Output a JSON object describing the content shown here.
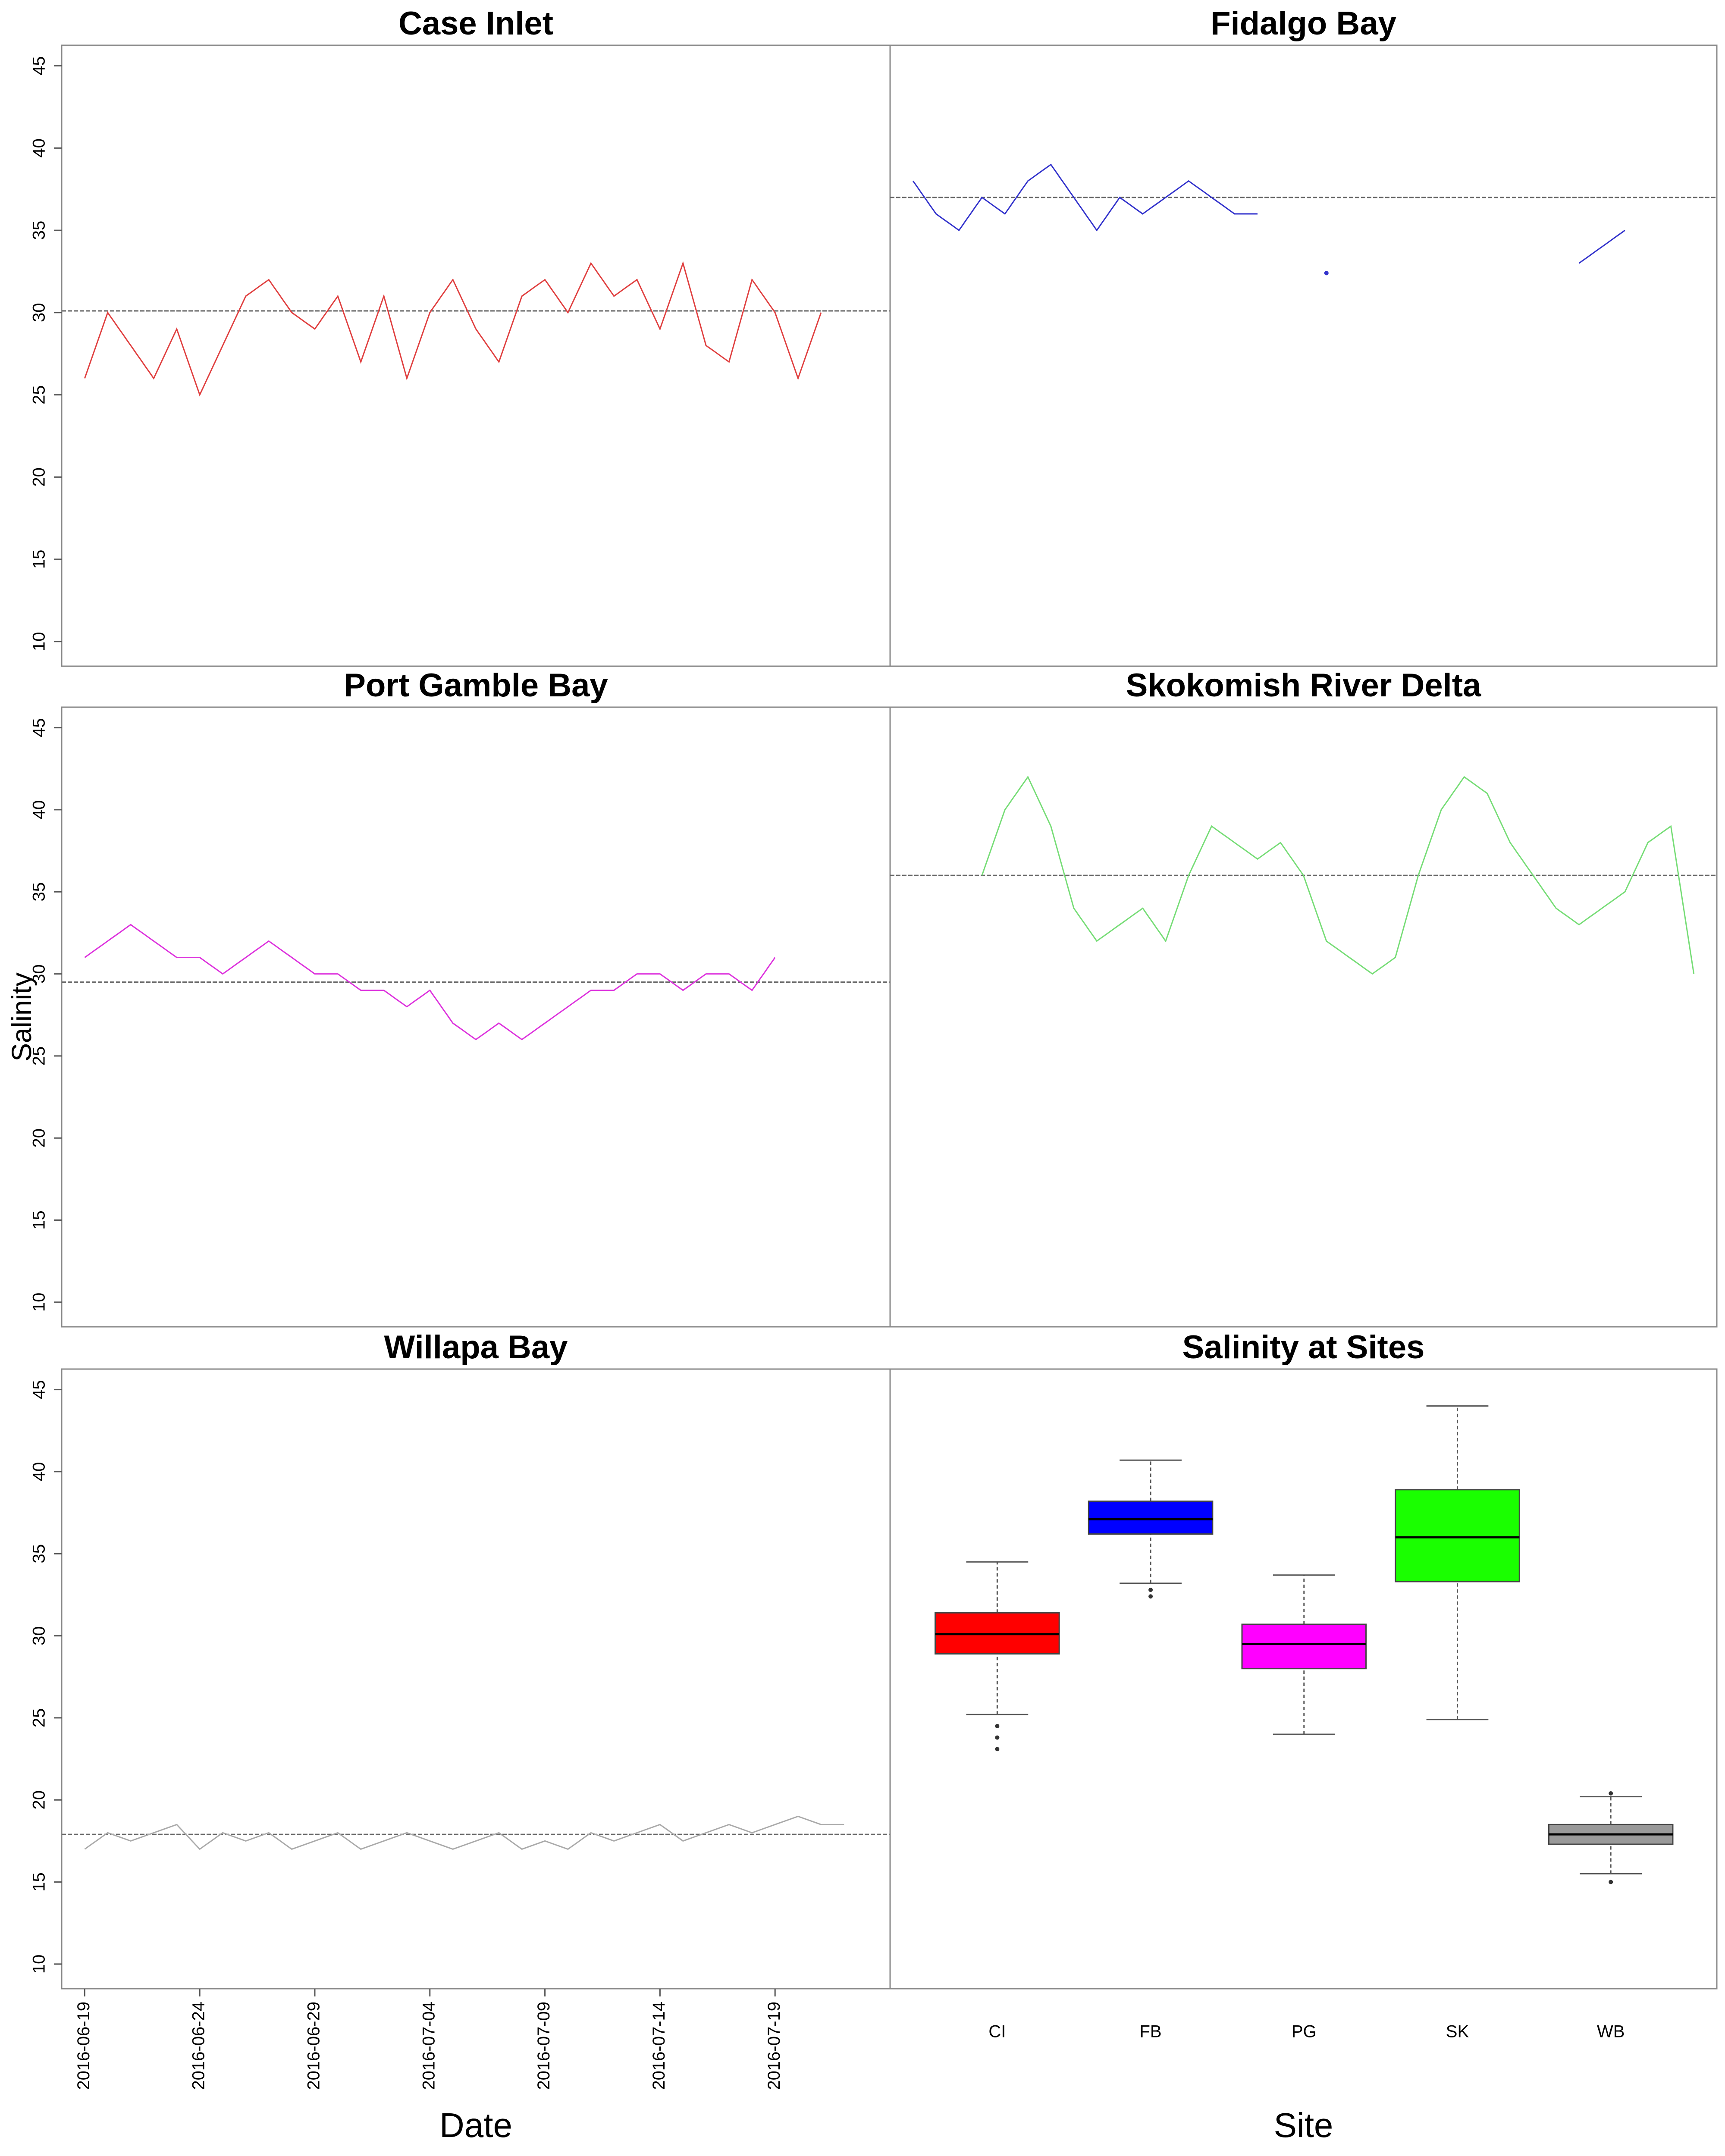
{
  "chart_data": [
    {
      "type": "line",
      "title": "Case Inlet",
      "color": "#e04040",
      "x": [
        "2016-06-19",
        "2016-06-20",
        "2016-06-21",
        "2016-06-22",
        "2016-06-23",
        "2016-06-24",
        "2016-06-25",
        "2016-06-26",
        "2016-06-27",
        "2016-06-28",
        "2016-06-29",
        "2016-06-30",
        "2016-07-01",
        "2016-07-02",
        "2016-07-03",
        "2016-07-04",
        "2016-07-05",
        "2016-07-06",
        "2016-07-07",
        "2016-07-08",
        "2016-07-09",
        "2016-07-10",
        "2016-07-11",
        "2016-07-12",
        "2016-07-13",
        "2016-07-14",
        "2016-07-15",
        "2016-07-16",
        "2016-07-17",
        "2016-07-18",
        "2016-07-19",
        "2016-07-20",
        "2016-07-21"
      ],
      "values": [
        26,
        30,
        28,
        26,
        29,
        25,
        28,
        31,
        32,
        30,
        29,
        31,
        27,
        31,
        26,
        30,
        32,
        29,
        27,
        31,
        32,
        30,
        33,
        31,
        32,
        29,
        33,
        28,
        27,
        32,
        30,
        26,
        30
      ],
      "median": 30.1,
      "xlim": [
        "2016-06-18",
        "2016-07-24"
      ],
      "ylim": [
        8.5,
        46.25
      ],
      "yticks": [
        10,
        15,
        20,
        25,
        30,
        35,
        40,
        45
      ]
    },
    {
      "type": "line",
      "title": "Fidalgo Bay",
      "color": "#3333cc",
      "x": [
        "2016-06-19",
        "2016-06-20",
        "2016-06-21",
        "2016-06-22",
        "2016-06-23",
        "2016-06-24",
        "2016-06-25",
        "2016-06-26",
        "2016-06-27",
        "2016-06-28",
        "2016-06-29",
        "2016-06-30",
        "2016-07-01",
        "2016-07-02",
        "2016-07-03",
        "2016-07-04",
        "2016-07-05",
        "2016-07-06",
        "2016-07-07",
        "2016-07-08",
        "2016-07-09",
        "2016-07-10",
        "2016-07-11",
        "2016-07-12",
        "2016-07-13",
        "2016-07-14",
        "2016-07-15",
        "2016-07-16",
        "2016-07-17",
        "2016-07-18",
        "2016-07-19",
        "2016-07-20"
      ],
      "values": [
        38,
        36,
        35,
        37,
        36,
        38,
        39,
        37,
        35,
        37,
        36,
        37,
        38,
        37,
        36,
        36,
        null,
        null,
        32.4,
        null,
        null,
        null,
        null,
        null,
        null,
        null,
        null,
        null,
        null,
        33,
        34,
        35
      ],
      "median": 37,
      "xlim": [
        "2016-06-18",
        "2016-07-24"
      ],
      "ylim": [
        8.5,
        46.25
      ]
    },
    {
      "type": "line",
      "title": "Port Gamble Bay",
      "color": "#dd33dd",
      "ylabel": "Salinity",
      "x": [
        "2016-06-19",
        "2016-06-20",
        "2016-06-21",
        "2016-06-22",
        "2016-06-23",
        "2016-06-24",
        "2016-06-25",
        "2016-06-26",
        "2016-06-27",
        "2016-06-28",
        "2016-06-29",
        "2016-06-30",
        "2016-07-01",
        "2016-07-02",
        "2016-07-03",
        "2016-07-04",
        "2016-07-05",
        "2016-07-06",
        "2016-07-07",
        "2016-07-08",
        "2016-07-09",
        "2016-07-10",
        "2016-07-11",
        "2016-07-12",
        "2016-07-13",
        "2016-07-14",
        "2016-07-15",
        "2016-07-16",
        "2016-07-17",
        "2016-07-18",
        "2016-07-19"
      ],
      "values": [
        31,
        32,
        33,
        32,
        31,
        31,
        30,
        31,
        32,
        31,
        30,
        30,
        29,
        29,
        28,
        29,
        27,
        26,
        27,
        26,
        27,
        28,
        29,
        29,
        30,
        30,
        29,
        30,
        30,
        29,
        31
      ],
      "median": 29.5,
      "xlim": [
        "2016-06-18",
        "2016-07-24"
      ],
      "ylim": [
        8.5,
        46.25
      ],
      "yticks": [
        10,
        15,
        20,
        25,
        30,
        35,
        40,
        45
      ]
    },
    {
      "type": "line",
      "title": "Skokomish River Delta",
      "color": "#77dd77",
      "x": [
        "2016-06-22",
        "2016-06-23",
        "2016-06-24",
        "2016-06-25",
        "2016-06-26",
        "2016-06-27",
        "2016-06-28",
        "2016-06-29",
        "2016-06-30",
        "2016-07-01",
        "2016-07-02",
        "2016-07-03",
        "2016-07-04",
        "2016-07-05",
        "2016-07-06",
        "2016-07-07",
        "2016-07-08",
        "2016-07-09",
        "2016-07-10",
        "2016-07-11",
        "2016-07-12",
        "2016-07-13",
        "2016-07-14",
        "2016-07-15",
        "2016-07-16",
        "2016-07-17",
        "2016-07-18",
        "2016-07-19",
        "2016-07-20",
        "2016-07-21",
        "2016-07-22",
        "2016-07-23"
      ],
      "values": [
        36,
        40,
        42,
        39,
        34,
        32,
        33,
        34,
        32,
        36,
        39,
        38,
        37,
        38,
        36,
        32,
        31,
        30,
        31,
        36,
        40,
        42,
        41,
        38,
        36,
        34,
        33,
        34,
        35,
        38,
        39,
        30
      ],
      "median": 36,
      "xlim": [
        "2016-06-18",
        "2016-07-24"
      ],
      "ylim": [
        8.5,
        46.25
      ]
    },
    {
      "type": "line",
      "title": "Willapa Bay",
      "color": "#aaaaaa",
      "xlabel": "Date",
      "x": [
        "2016-06-19",
        "2016-06-20",
        "2016-06-21",
        "2016-06-22",
        "2016-06-23",
        "2016-06-24",
        "2016-06-25",
        "2016-06-26",
        "2016-06-27",
        "2016-06-28",
        "2016-06-29",
        "2016-06-30",
        "2016-07-01",
        "2016-07-02",
        "2016-07-03",
        "2016-07-04",
        "2016-07-05",
        "2016-07-06",
        "2016-07-07",
        "2016-07-08",
        "2016-07-09",
        "2016-07-10",
        "2016-07-11",
        "2016-07-12",
        "2016-07-13",
        "2016-07-14",
        "2016-07-15",
        "2016-07-16",
        "2016-07-17",
        "2016-07-18",
        "2016-07-19",
        "2016-07-20",
        "2016-07-21",
        "2016-07-22"
      ],
      "values": [
        17,
        18,
        17.5,
        18,
        18.5,
        17,
        18,
        17.5,
        18,
        17,
        17.5,
        18,
        17,
        17.5,
        18,
        17.5,
        17,
        17.5,
        18,
        17,
        17.5,
        17,
        18,
        17.5,
        18,
        18.5,
        17.5,
        18,
        18.5,
        18,
        18.5,
        19,
        18.5,
        18.5
      ],
      "median": 17.9,
      "xlim": [
        "2016-06-18",
        "2016-07-24"
      ],
      "ylim": [
        8.5,
        46.25
      ],
      "yticks": [
        10,
        15,
        20,
        25,
        30,
        35,
        40,
        45
      ],
      "xticks": [
        "2016-06-19",
        "2016-06-24",
        "2016-06-29",
        "2016-07-04",
        "2016-07-09",
        "2016-07-14",
        "2016-07-19"
      ]
    },
    {
      "type": "box",
      "title": "Salinity at Sites",
      "xlabel": "Site",
      "categories": [
        "CI",
        "FB",
        "PG",
        "SK",
        "WB"
      ],
      "colors": [
        "#ff0000",
        "#0000ff",
        "#ff00ff",
        "#1aff00",
        "#999999"
      ],
      "boxes": [
        {
          "whislo": 25.2,
          "q1": 28.9,
          "med": 30.1,
          "q3": 31.4,
          "whishi": 34.5,
          "fliers": [
            24.5,
            23.8,
            23.1
          ]
        },
        {
          "whislo": 33.2,
          "q1": 36.2,
          "med": 37.1,
          "q3": 38.2,
          "whishi": 40.7,
          "fliers": [
            32.8,
            32.4
          ]
        },
        {
          "whislo": 24.0,
          "q1": 28.0,
          "med": 29.5,
          "q3": 30.7,
          "whishi": 33.7,
          "fliers": []
        },
        {
          "whislo": 24.9,
          "q1": 33.3,
          "med": 36.0,
          "q3": 38.9,
          "whishi": 44.0,
          "fliers": []
        },
        {
          "whislo": 15.5,
          "q1": 17.3,
          "med": 17.9,
          "q3": 18.5,
          "whishi": 20.2,
          "fliers": [
            15.0,
            20.4
          ]
        }
      ],
      "ylim": [
        8.5,
        46.25
      ]
    }
  ]
}
